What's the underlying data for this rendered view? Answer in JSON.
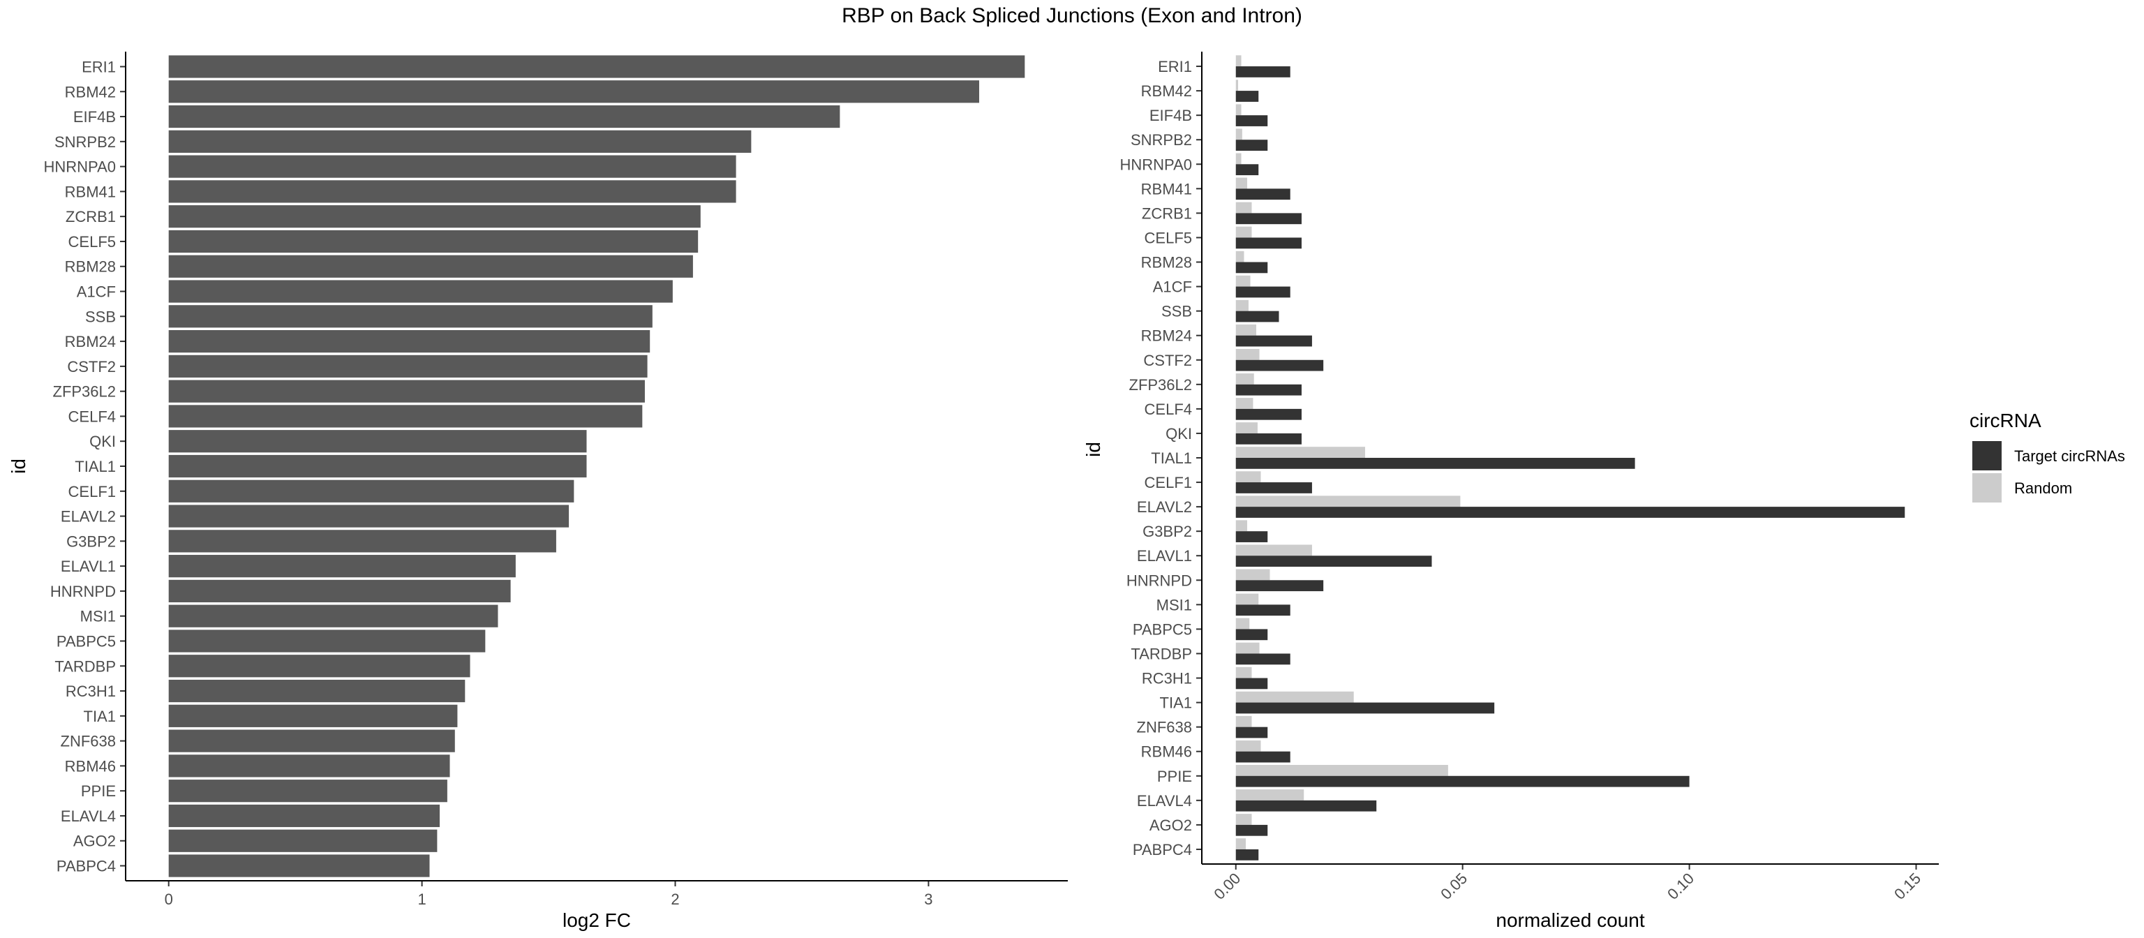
{
  "figure": {
    "title": "RBP on Back Spliced Junctions (Exon and Intron)"
  },
  "chart_data": [
    {
      "type": "bar",
      "orientation": "horizontal",
      "title": "",
      "xlabel": "log2 FC",
      "ylabel": "id",
      "xlim": [
        -0.17,
        3.55
      ],
      "xticks": [
        0,
        1,
        2,
        3
      ],
      "grid": false,
      "bar_color": "#595959",
      "categories": [
        "ERI1",
        "RBM42",
        "EIF4B",
        "SNRPB2",
        "HNRNPA0",
        "RBM41",
        "ZCRB1",
        "CELF5",
        "RBM28",
        "A1CF",
        "SSB",
        "RBM24",
        "CSTF2",
        "ZFP36L2",
        "CELF4",
        "QKI",
        "TIAL1",
        "CELF1",
        "ELAVL2",
        "G3BP2",
        "ELAVL1",
        "HNRNPD",
        "MSI1",
        "PABPC5",
        "TARDBP",
        "RC3H1",
        "TIA1",
        "ZNF638",
        "RBM46",
        "PPIE",
        "ELAVL4",
        "AGO2",
        "PABPC4"
      ],
      "values": [
        3.38,
        3.2,
        2.65,
        2.3,
        2.24,
        2.24,
        2.1,
        2.09,
        2.07,
        1.99,
        1.91,
        1.9,
        1.89,
        1.88,
        1.87,
        1.65,
        1.65,
        1.6,
        1.58,
        1.53,
        1.37,
        1.35,
        1.3,
        1.25,
        1.19,
        1.17,
        1.14,
        1.13,
        1.11,
        1.1,
        1.07,
        1.06,
        1.03
      ]
    },
    {
      "type": "bar",
      "orientation": "horizontal",
      "title": "",
      "xlabel": "normalized count",
      "ylabel": "id",
      "xlim": [
        -0.0075,
        0.155
      ],
      "xticks": [
        0.0,
        0.05,
        0.1,
        0.15
      ],
      "xtick_labels": [
        "0.00",
        "0.05",
        "0.10",
        "0.15"
      ],
      "grid": false,
      "legend_position": "right",
      "legend_title": "circRNA",
      "categories": [
        "ERI1",
        "RBM42",
        "EIF4B",
        "SNRPB2",
        "HNRNPA0",
        "RBM41",
        "ZCRB1",
        "CELF5",
        "RBM28",
        "A1CF",
        "SSB",
        "RBM24",
        "CSTF2",
        "ZFP36L2",
        "CELF4",
        "QKI",
        "TIAL1",
        "CELF1",
        "ELAVL2",
        "G3BP2",
        "ELAVL1",
        "HNRNPD",
        "MSI1",
        "PABPC5",
        "TARDBP",
        "RC3H1",
        "TIA1",
        "ZNF638",
        "RBM46",
        "PPIE",
        "ELAVL4",
        "AGO2",
        "PABPC4"
      ],
      "series": [
        {
          "name": "Target circRNAs",
          "color": "#333333",
          "values": [
            0.012,
            0.005,
            0.007,
            0.007,
            0.005,
            0.012,
            0.0145,
            0.0145,
            0.007,
            0.012,
            0.0095,
            0.0168,
            0.0193,
            0.0145,
            0.0145,
            0.0145,
            0.088,
            0.0168,
            0.1475,
            0.007,
            0.0432,
            0.0193,
            0.012,
            0.007,
            0.012,
            0.007,
            0.057,
            0.007,
            0.012,
            0.1,
            0.031,
            0.007,
            0.005
          ]
        },
        {
          "name": "Random",
          "color": "#cccccc",
          "values": [
            0.0012,
            0.0005,
            0.0012,
            0.0014,
            0.0012,
            0.0025,
            0.0035,
            0.0035,
            0.0018,
            0.0032,
            0.0028,
            0.0045,
            0.0052,
            0.004,
            0.0038,
            0.0048,
            0.0285,
            0.0055,
            0.0495,
            0.0025,
            0.0168,
            0.0075,
            0.005,
            0.003,
            0.0052,
            0.0035,
            0.026,
            0.0035,
            0.0055,
            0.0468,
            0.015,
            0.0035,
            0.0022
          ]
        }
      ]
    }
  ]
}
